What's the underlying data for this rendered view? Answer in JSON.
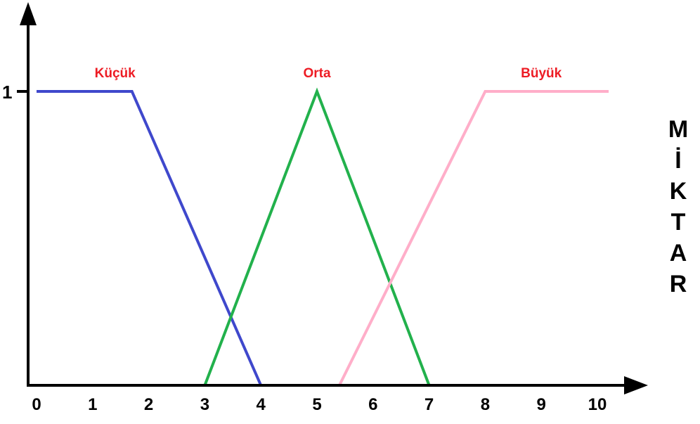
{
  "chart_data": {
    "type": "line",
    "title": "",
    "xlabel": "",
    "ylabel": "",
    "side_label": "MİKTAR",
    "x_ticks": [
      "0",
      "1",
      "2",
      "3",
      "4",
      "5",
      "6",
      "7",
      "8",
      "9",
      "10"
    ],
    "y_ticks": [
      "1"
    ],
    "xlim": [
      0,
      10.5
    ],
    "ylim": [
      0,
      1
    ],
    "grid": false,
    "series": [
      {
        "name": "Küçük",
        "color": "#3f48cc",
        "points": [
          [
            0,
            1
          ],
          [
            1.7,
            1
          ],
          [
            4,
            0
          ]
        ]
      },
      {
        "name": "Orta",
        "color": "#22b14c",
        "points": [
          [
            3,
            0
          ],
          [
            5,
            1
          ],
          [
            7,
            0
          ]
        ]
      },
      {
        "name": "Büyük",
        "color": "#ffaec9",
        "points": [
          [
            5.4,
            0
          ],
          [
            8,
            1
          ],
          [
            10.2,
            1
          ]
        ]
      }
    ],
    "series_label_color": "#ed1c24"
  }
}
